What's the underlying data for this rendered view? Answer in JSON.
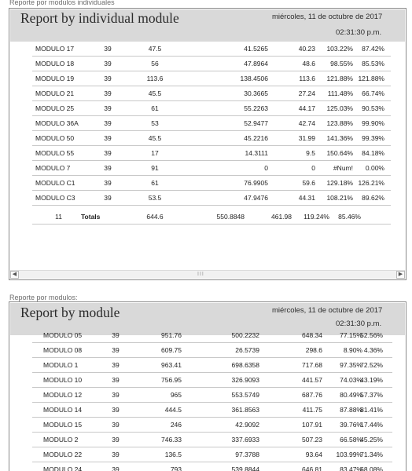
{
  "report1": {
    "caption": "Reporte por modulos individuales",
    "title": "Report by individual module",
    "date": "miércoles, 11 de octubre de 2017",
    "time": "02:31:30 p.m.",
    "rows": [
      [
        "MODULO 17",
        "39",
        "47.5",
        "41.5265",
        "40.23",
        "103.22%",
        "87.42%"
      ],
      [
        "MODULO 18",
        "39",
        "56",
        "47.8964",
        "48.6",
        "98.55%",
        "85.53%"
      ],
      [
        "MODULO 19",
        "39",
        "113.6",
        "138.4506",
        "113.6",
        "121.88%",
        "121.88%"
      ],
      [
        "MODULO 21",
        "39",
        "45.5",
        "30.3665",
        "27.24",
        "111.48%",
        "66.74%"
      ],
      [
        "MODULO 25",
        "39",
        "61",
        "55.2263",
        "44.17",
        "125.03%",
        "90.53%"
      ],
      [
        "MODULO 36A",
        "39",
        "53",
        "52.9477",
        "42.74",
        "123.88%",
        "99.90%"
      ],
      [
        "MODULO 50",
        "39",
        "45.5",
        "45.2216",
        "31.99",
        "141.36%",
        "99.39%"
      ],
      [
        "MODULO 55",
        "39",
        "17",
        "14.3111",
        "9.5",
        "150.64%",
        "84.18%"
      ],
      [
        "MODULO 7",
        "39",
        "91",
        "0",
        "0",
        "#Num!",
        "0.00%"
      ],
      [
        "MODULO C1",
        "39",
        "61",
        "76.9905",
        "59.6",
        "129.18%",
        "126.21%"
      ],
      [
        "MODULO C3",
        "39",
        "53.5",
        "47.9476",
        "44.31",
        "108.21%",
        "89.62%"
      ]
    ],
    "totals": {
      "count": "11",
      "label": "Totals",
      "values": [
        "644.6",
        "550.8848",
        "461.98",
        "119.24%",
        "85.46%"
      ]
    },
    "scroll_left": "◀",
    "scroll_right": "▶",
    "scroll_grip": "III"
  },
  "report2": {
    "caption": "Reporte por modulos:",
    "title": "Report by module",
    "date": "miércoles, 11 de octubre de 2017",
    "time": "02:31:30 p.m.",
    "rows": [
      [
        "MODULO 05",
        "39",
        "951.76",
        "500.2232",
        "648.34",
        "77.15%",
        "52.56%"
      ],
      [
        "MODULO 08",
        "39",
        "609.75",
        "26.5739",
        "298.6",
        "8.90%",
        "4.36%"
      ],
      [
        "MODULO 1",
        "39",
        "963.41",
        "698.6358",
        "717.68",
        "97.35%",
        "72.52%"
      ],
      [
        "MODULO 10",
        "39",
        "756.95",
        "326.9093",
        "441.57",
        "74.03%",
        "43.19%"
      ],
      [
        "MODULO 12",
        "39",
        "965",
        "553.5749",
        "687.76",
        "80.49%",
        "57.37%"
      ],
      [
        "MODULO 14",
        "39",
        "444.5",
        "361.8563",
        "411.75",
        "87.88%",
        "81.41%"
      ],
      [
        "MODULO 15",
        "39",
        "246",
        "42.9092",
        "107.91",
        "39.76%",
        "17.44%"
      ],
      [
        "MODULO 2",
        "39",
        "746.33",
        "337.6933",
        "507.23",
        "66.58%",
        "45.25%"
      ],
      [
        "MODULO 22",
        "39",
        "136.5",
        "97.3788",
        "93.64",
        "103.99%",
        "71.34%"
      ],
      [
        "MODULO 24",
        "39",
        "793",
        "539.8844",
        "646.81",
        "83.47%",
        "68.08%"
      ]
    ]
  }
}
